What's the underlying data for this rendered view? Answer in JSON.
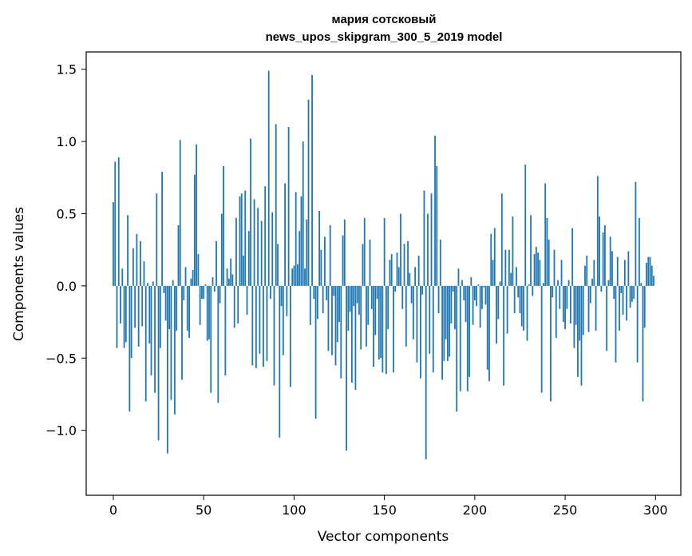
{
  "chart_data": {
    "type": "bar",
    "title": "мария сотсковый",
    "subtitle": "news_upos_skipgram_300_5_2019 model",
    "xlabel": "Vector components",
    "ylabel": "Components values",
    "xlim": [
      -15,
      314
    ],
    "ylim": [
      -1.45,
      1.62
    ],
    "xticks": [
      0,
      50,
      100,
      150,
      200,
      250,
      300
    ],
    "xtick_labels": [
      "0",
      "50",
      "100",
      "150",
      "200",
      "250",
      "300"
    ],
    "yticks": [
      -1.0,
      -0.5,
      0.0,
      0.5,
      1.0,
      1.5
    ],
    "ytick_labels": [
      "−1.0",
      "−0.5",
      "0.0",
      "0.5",
      "1.0",
      "1.5"
    ],
    "bar_color": "#1f77b4",
    "x_start": 0,
    "values": [
      0.58,
      0.86,
      -0.43,
      0.89,
      -0.26,
      0.12,
      -0.43,
      -0.39,
      0.49,
      -0.87,
      -0.5,
      0.26,
      -0.29,
      0.36,
      -0.42,
      0.31,
      -0.28,
      0.17,
      -0.8,
      0.02,
      -0.4,
      -0.62,
      0.03,
      -0.74,
      0.64,
      -1.07,
      -0.43,
      0.79,
      -0.05,
      -0.24,
      -1.16,
      -0.3,
      -0.79,
      0.04,
      -0.89,
      -0.31,
      0.42,
      1.01,
      -0.65,
      -0.1,
      0.13,
      -0.31,
      -0.36,
      0.05,
      0.11,
      0.77,
      0.98,
      0.22,
      -0.27,
      -0.09,
      -0.09,
      0.01,
      -0.38,
      -0.37,
      -0.74,
      0.06,
      -0.04,
      0.31,
      -0.81,
      -0.12,
      0.5,
      0.83,
      -0.62,
      0.12,
      0.05,
      0.19,
      0.08,
      -0.29,
      0.47,
      -0.26,
      0.62,
      0.64,
      0.21,
      0.66,
      -0.2,
      0.38,
      1.02,
      -0.55,
      0.6,
      -0.57,
      0.54,
      -0.47,
      0.45,
      -0.56,
      0.69,
      -0.52,
      1.49,
      -0.09,
      0.51,
      -0.69,
      1.12,
      0.29,
      -1.05,
      -0.14,
      -0.48,
      0.71,
      -0.21,
      1.1,
      -0.7,
      0.12,
      0.14,
      0.65,
      0.15,
      0.38,
      0.62,
      1.0,
      0.12,
      0.46,
      1.29,
      -0.27,
      1.46,
      -0.09,
      -0.92,
      -0.23,
      0.52,
      0.25,
      -0.19,
      0.34,
      -0.1,
      -0.45,
      0.42,
      -0.48,
      -0.07,
      -0.55,
      -0.39,
      -0.25,
      -0.64,
      0.35,
      0.46,
      -1.14,
      -0.31,
      -0.18,
      -0.67,
      -0.14,
      -0.72,
      -0.12,
      -0.2,
      -0.44,
      0.29,
      0.47,
      -0.42,
      -0.27,
      0.32,
      -0.16,
      -0.56,
      -0.34,
      -0.09,
      -0.51,
      -0.5,
      -0.6,
      0.47,
      -0.61,
      -0.3,
      0.18,
      0.22,
      -0.6,
      -0.04,
      0.23,
      0.13,
      0.5,
      -0.16,
      0.29,
      -0.42,
      0.31,
      0.09,
      -0.12,
      -0.37,
      0.13,
      -0.53,
      0.21,
      -0.64,
      -0.06,
      0.66,
      -1.2,
      0.5,
      -0.47,
      0.64,
      -0.6,
      1.04,
      0.83,
      -0.19,
      0.32,
      -0.65,
      -0.52,
      -0.37,
      -0.52,
      -0.49,
      -0.26,
      -0.04,
      -0.3,
      -0.87,
      0.12,
      -0.73,
      0.04,
      -0.1,
      -0.25,
      -0.73,
      -0.63,
      0.06,
      -0.27,
      -0.1,
      -0.14,
      0.01,
      -0.29,
      -0.16,
      -0.01,
      -0.13,
      -0.58,
      -0.66,
      0.36,
      0.18,
      0.4,
      -0.4,
      -0.23,
      0.03,
      0.64,
      -0.69,
      0.25,
      -0.33,
      0.25,
      0.09,
      0.48,
      -0.19,
      0.13,
      -0.08,
      -0.19,
      -0.28,
      -0.31,
      0.84,
      -0.38,
      0.01,
      0.49,
      -0.07,
      0.22,
      0.27,
      0.23,
      0.18,
      -0.74,
      0.02,
      0.71,
      0.47,
      0.32,
      -0.8,
      -0.08,
      0.25,
      -0.36,
      0.04,
      -0.16,
      0.18,
      -0.25,
      -0.3,
      -0.16,
      0.04,
      -0.26,
      0.4,
      -0.43,
      -0.27,
      -0.63,
      -0.38,
      -0.69,
      -0.34,
      0.14,
      0.21,
      -0.32,
      -0.12,
      0.05,
      0.18,
      -0.31,
      0.76,
      0.48,
      -0.04,
      0.37,
      0.42,
      -0.45,
      0.04,
      0.34,
      0.24,
      -0.09,
      -0.53,
      0.2,
      -0.31,
      -0.05,
      -0.2,
      0.18,
      -0.24,
      0.24,
      -0.15,
      -0.11,
      -0.09,
      0.72,
      -0.53,
      0.47,
      0.02,
      -0.8,
      -0.29,
      0.16,
      0.2,
      0.2,
      0.14,
      0.07
    ]
  }
}
